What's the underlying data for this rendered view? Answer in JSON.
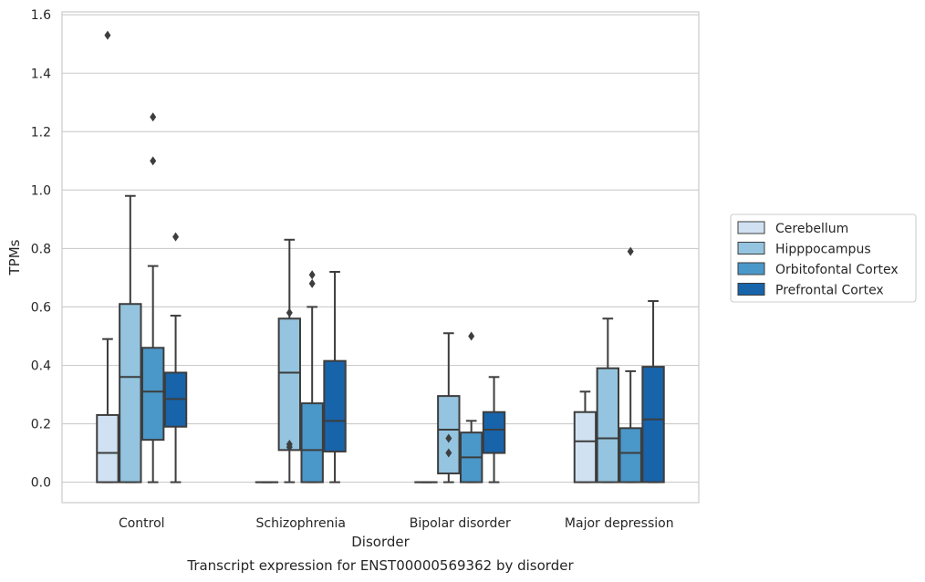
{
  "chart_data": {
    "type": "box",
    "title": "Transcript expression for ENST00000569362 by disorder",
    "xlabel": "Disorder",
    "ylabel": "TPMs",
    "ylim": [
      -0.07,
      1.61
    ],
    "yticks": [
      "0.0",
      "0.2",
      "0.4",
      "0.6",
      "0.8",
      "1.0",
      "1.2",
      "1.4",
      "1.6"
    ],
    "grid": true,
    "legend_position": "right",
    "categories": [
      "Control",
      "Schizophrenia",
      "Bipolar disorder",
      "Major depression"
    ],
    "series": [
      {
        "name": "Cerebellum",
        "color": "#d0e1f2",
        "boxes": [
          {
            "min": 0.0,
            "q1": 0.0,
            "median": 0.1,
            "q3": 0.23,
            "max": 0.49,
            "outliers": [
              1.53
            ]
          },
          {
            "min": 0.0,
            "q1": 0.0,
            "median": 0.0,
            "q3": 0.0,
            "max": 0.0,
            "outliers": []
          },
          {
            "min": 0.0,
            "q1": 0.0,
            "median": 0.0,
            "q3": 0.0,
            "max": 0.0,
            "outliers": []
          },
          {
            "min": 0.0,
            "q1": 0.0,
            "median": 0.14,
            "q3": 0.24,
            "max": 0.31,
            "outliers": []
          }
        ]
      },
      {
        "name": "Hipppocampus",
        "color": "#94c4df",
        "boxes": [
          {
            "min": 0.0,
            "q1": 0.0,
            "median": 0.36,
            "q3": 0.61,
            "max": 0.98,
            "outliers": []
          },
          {
            "min": 0.0,
            "q1": 0.11,
            "median": 0.375,
            "q3": 0.56,
            "max": 0.83,
            "outliers": [
              0.12,
              0.13,
              0.58
            ]
          },
          {
            "min": 0.0,
            "q1": 0.03,
            "median": 0.18,
            "q3": 0.295,
            "max": 0.51,
            "outliers": [
              0.1,
              0.15
            ]
          },
          {
            "min": 0.0,
            "q1": 0.0,
            "median": 0.15,
            "q3": 0.39,
            "max": 0.56,
            "outliers": []
          }
        ]
      },
      {
        "name": "Orbitofontal Cortex",
        "color": "#4a98c9",
        "boxes": [
          {
            "min": 0.0,
            "q1": 0.145,
            "median": 0.31,
            "q3": 0.46,
            "max": 0.74,
            "outliers": [
              1.1,
              1.25
            ]
          },
          {
            "min": 0.0,
            "q1": 0.0,
            "median": 0.11,
            "q3": 0.27,
            "max": 0.6,
            "outliers": [
              0.68,
              0.71
            ]
          },
          {
            "min": 0.0,
            "q1": 0.0,
            "median": 0.085,
            "q3": 0.17,
            "max": 0.21,
            "outliers": [
              0.5
            ]
          },
          {
            "min": 0.0,
            "q1": 0.0,
            "median": 0.1,
            "q3": 0.185,
            "max": 0.38,
            "outliers": [
              0.79
            ]
          }
        ]
      },
      {
        "name": "Prefrontal Cortex",
        "color": "#1764ab",
        "boxes": [
          {
            "min": 0.0,
            "q1": 0.19,
            "median": 0.285,
            "q3": 0.375,
            "max": 0.57,
            "outliers": [
              0.84
            ]
          },
          {
            "min": 0.0,
            "q1": 0.105,
            "median": 0.21,
            "q3": 0.415,
            "max": 0.72,
            "outliers": []
          },
          {
            "min": 0.0,
            "q1": 0.1,
            "median": 0.18,
            "q3": 0.24,
            "max": 0.36,
            "outliers": []
          },
          {
            "min": 0.0,
            "q1": 0.0,
            "median": 0.215,
            "q3": 0.395,
            "max": 0.62,
            "outliers": []
          }
        ]
      }
    ]
  }
}
